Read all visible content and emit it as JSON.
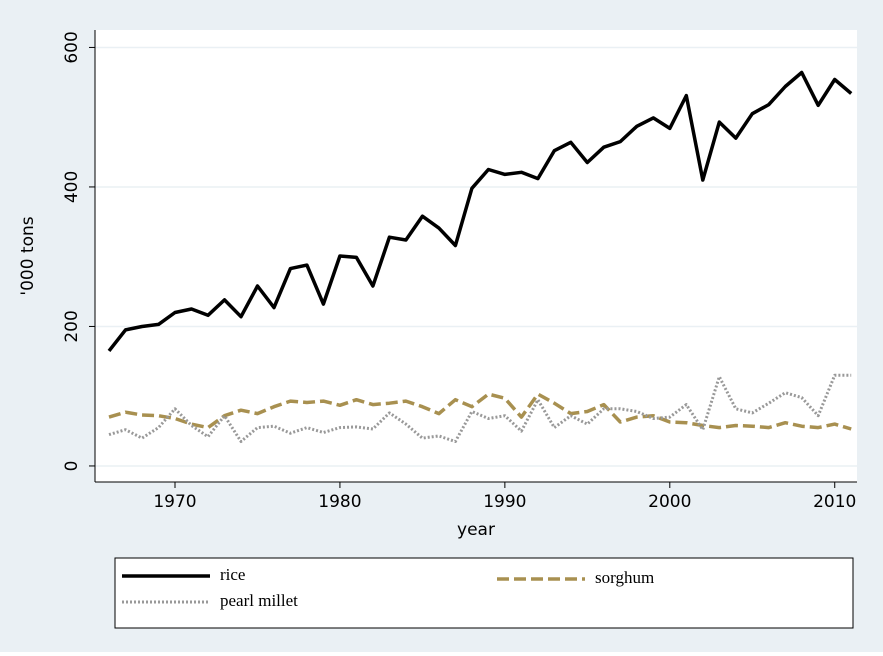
{
  "chart_data": {
    "type": "line",
    "y_label": "'000 tons",
    "x_label": "year",
    "x": [
      1966,
      1967,
      1968,
      1969,
      1970,
      1971,
      1972,
      1973,
      1974,
      1975,
      1976,
      1977,
      1978,
      1979,
      1980,
      1981,
      1982,
      1983,
      1984,
      1985,
      1986,
      1987,
      1988,
      1989,
      1990,
      1991,
      1992,
      1993,
      1994,
      1995,
      1996,
      1997,
      1998,
      1999,
      2000,
      2001,
      2002,
      2003,
      2004,
      2005,
      2006,
      2007,
      2008,
      2009,
      2010,
      2011
    ],
    "series": [
      {
        "name": "rice",
        "color": "#000000",
        "dash": "solid",
        "values": [
          165,
          195,
          200,
          203,
          220,
          225,
          216,
          238,
          214,
          258,
          227,
          283,
          288,
          232,
          301,
          299,
          258,
          328,
          324,
          358,
          341,
          316,
          398,
          425,
          418,
          421,
          412,
          452,
          464,
          435,
          457,
          465,
          487,
          499,
          484,
          531,
          410,
          493,
          470,
          505,
          518,
          544,
          564,
          517,
          554,
          534
        ]
      },
      {
        "name": "sorghum",
        "color": "#a89050",
        "dash": "dashed",
        "values": [
          70,
          77,
          73,
          72,
          68,
          60,
          55,
          72,
          80,
          75,
          85,
          93,
          91,
          93,
          87,
          95,
          88,
          90,
          93,
          85,
          75,
          95,
          85,
          103,
          97,
          70,
          103,
          90,
          75,
          78,
          88,
          63,
          70,
          72,
          63,
          62,
          58,
          55,
          58,
          57,
          55,
          62,
          57,
          55,
          60,
          53
        ]
      },
      {
        "name": "pearl millet",
        "color": "#999999",
        "dash": "dotted",
        "values": [
          45,
          52,
          40,
          55,
          82,
          58,
          42,
          72,
          35,
          55,
          57,
          47,
          55,
          48,
          55,
          56,
          53,
          76,
          60,
          40,
          43,
          35,
          78,
          68,
          72,
          50,
          95,
          55,
          72,
          60,
          82,
          82,
          78,
          68,
          70,
          88,
          52,
          128,
          82,
          76,
          90,
          105,
          98,
          72,
          130,
          130
        ]
      }
    ],
    "xlim": [
      1965.15,
      2011.35
    ],
    "xticks": [
      1970,
      1980,
      1990,
      2000,
      2010
    ],
    "ylim": [
      -23,
      625
    ],
    "yticks": [
      0,
      200,
      400,
      600
    ],
    "grid": true
  }
}
